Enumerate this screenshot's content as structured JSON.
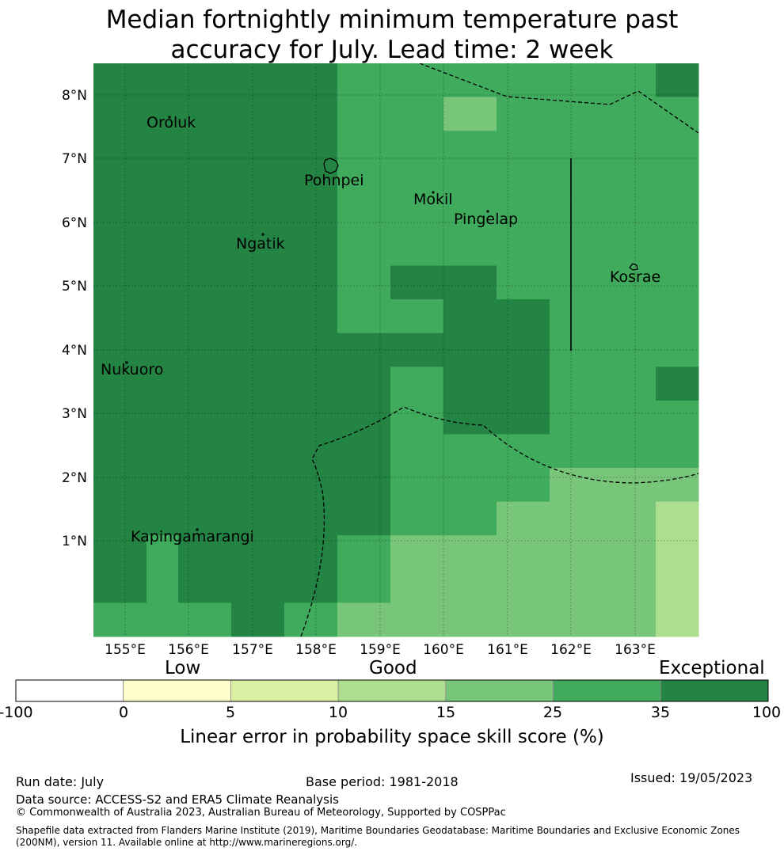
{
  "title": {
    "line1": "Median fortnightly minimum temperature past",
    "line2": "accuracy for July. Lead time: 2 week"
  },
  "map": {
    "lat_labels": [
      "8°N",
      "7°N",
      "6°N",
      "5°N",
      "4°N",
      "3°N",
      "2°N",
      "1°N"
    ],
    "lon_labels": [
      "155°E",
      "156°E",
      "157°E",
      "158°E",
      "159°E",
      "160°E",
      "161°E",
      "162°E",
      "163°E"
    ],
    "places": [
      "Oroluk",
      "Pohnpei",
      "Mokil",
      "Pingelap",
      "Ngatik",
      "Kosrae",
      "Nukuoro",
      "Kapingamarangi"
    ],
    "colors": {
      "c0_5": "#ffffcc",
      "c5_10": "#d9f0a3",
      "c10_15": "#addd8e",
      "c15_25": "#78c679",
      "c25_35": "#41ab5d",
      "c35_100": "#238443"
    }
  },
  "colorbar": {
    "words": {
      "low": "Low",
      "good": "Good",
      "exceptional": "Exceptional"
    },
    "ticks": [
      "-100",
      "0",
      "5",
      "10",
      "15",
      "25",
      "35",
      "100"
    ],
    "colors": [
      "#ffffff",
      "#ffffcc",
      "#d9f0a3",
      "#addd8e",
      "#78c679",
      "#41ab5d",
      "#238443"
    ],
    "label": "Linear error in probability space skill score (%)"
  },
  "footer": {
    "run_date": "Run date: July",
    "base_period": "Base period: 1981-2018",
    "issued": "Issued: 19/05/2023",
    "data_source": "Data source: ACCESS-S2 and ERA5 Climate Reanalysis",
    "copyright": "© Commonwealth of Australia 2023, Australian Bureau of Meteorology, Supported by COSPPac",
    "shapefile_line1": "Shapefile data extracted from Flanders Marine Institute (2019), Maritime Boundaries Geodatabase: Maritime Boundaries and Exclusive Economic Zones",
    "shapefile_line2": "(200NM), version 11. Available online at http://www.marineregions.org/."
  }
}
